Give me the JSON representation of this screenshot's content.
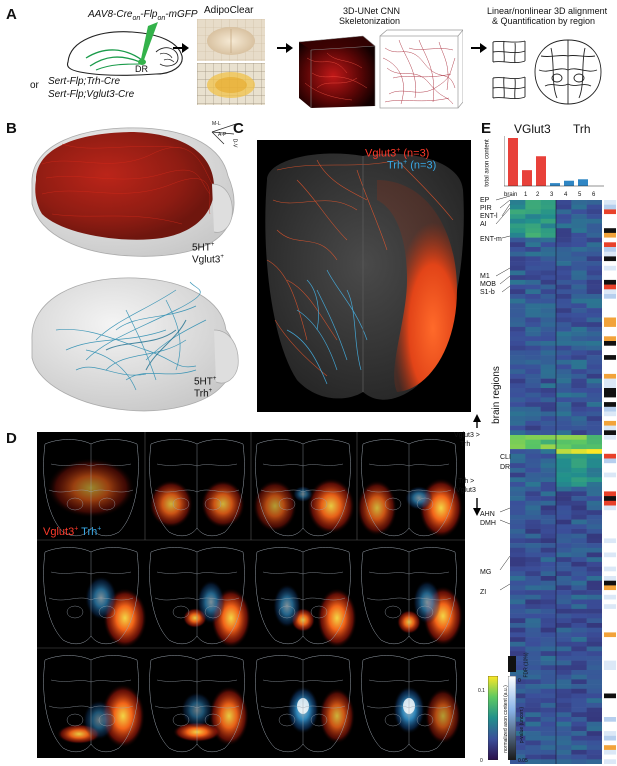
{
  "panels": {
    "A": {
      "label": "A",
      "virus": "AAV8-Cre",
      "virus_sub1": "on",
      "virus_mid": "-Flp",
      "virus_sub2": "on",
      "virus_end": "-mGFP",
      "injection_site": "DR",
      "or_text": "or",
      "mouse_line1": "Sert-Flp;Trh-Cre",
      "mouse_line2": "Sert-Flp;Vglut3-Cre",
      "step1": "AdipoClear",
      "step2_line1": "3D-UNet CNN",
      "step2_line2": "Skeletonization",
      "step3_line1": "Linear/nonlinear 3D alignment",
      "step3_line2": "& Quantification by region"
    },
    "B": {
      "label": "B",
      "axis_ml": "M-L",
      "axis_ap": "A-P",
      "axis_dv": "D-V",
      "top_line1": "5HT",
      "top_line2": "Vglut3",
      "bottom_line1": "5HT",
      "bottom_line2": "Trh",
      "sup": "+"
    },
    "C": {
      "label": "C",
      "legend_vglut3": "Vglut3",
      "legend_vglut3_n": "(n=3)",
      "legend_trh": "Trh",
      "legend_trh_n": "(n=3)",
      "sup": "+"
    },
    "D": {
      "label": "D",
      "legend_vglut3": "Vglut3",
      "legend_trh": "Trh",
      "sup": "+"
    },
    "E": {
      "label": "E",
      "group1": "VGlut3",
      "group2": "Trh",
      "bar_ylabel": "total axon content",
      "brain_label": "brain",
      "brain_ids": [
        "1",
        "2",
        "3",
        "4",
        "5",
        "6"
      ],
      "regions_top": [
        "EP",
        "PIR",
        "ENT-l",
        "AI",
        "ENT-m",
        "M1",
        "MOB",
        "S1-b"
      ],
      "regions_mid": [
        "CLI",
        "DR"
      ],
      "regions_bottom": [
        "AHN",
        "DMH",
        "MG",
        "ZI"
      ],
      "axis_label": "brain regions",
      "compare_up1": "Vglut3 >",
      "compare_up2": "Trh",
      "compare_dn1": "Trh >",
      "compare_dn2": "Vglut3",
      "cbar_ticks": [
        "0.1",
        "0"
      ],
      "cbar_label": "normalized axon content (a.u.)",
      "pval_ticks": [
        "0",
        "0.05"
      ],
      "pval_label": "p-value (uncorr.)",
      "fdr_label": "FDR (10%)"
    }
  },
  "chart_data": {
    "type": "bar",
    "title": "",
    "ylabel": "total axon content",
    "xlabel": "brain",
    "categories": [
      "1",
      "2",
      "3",
      "4",
      "5",
      "6"
    ],
    "values": [
      1.0,
      0.33,
      0.62,
      0.06,
      0.11,
      0.14
    ],
    "groups": [
      {
        "name": "VGlut3",
        "categories": [
          "1",
          "2",
          "3"
        ],
        "color": "#e8413a"
      },
      {
        "name": "Trh",
        "categories": [
          "4",
          "5",
          "6"
        ],
        "color": "#2f86c4"
      }
    ],
    "ylim": [
      0,
      1
    ]
  },
  "colors": {
    "vglut3": "#ff3a2a",
    "trh": "#39a9e6",
    "bar_red": "#e8413a",
    "bar_blue": "#2f86c4",
    "heat_low": "#3b1a5e",
    "heat_high": "#fde725"
  }
}
